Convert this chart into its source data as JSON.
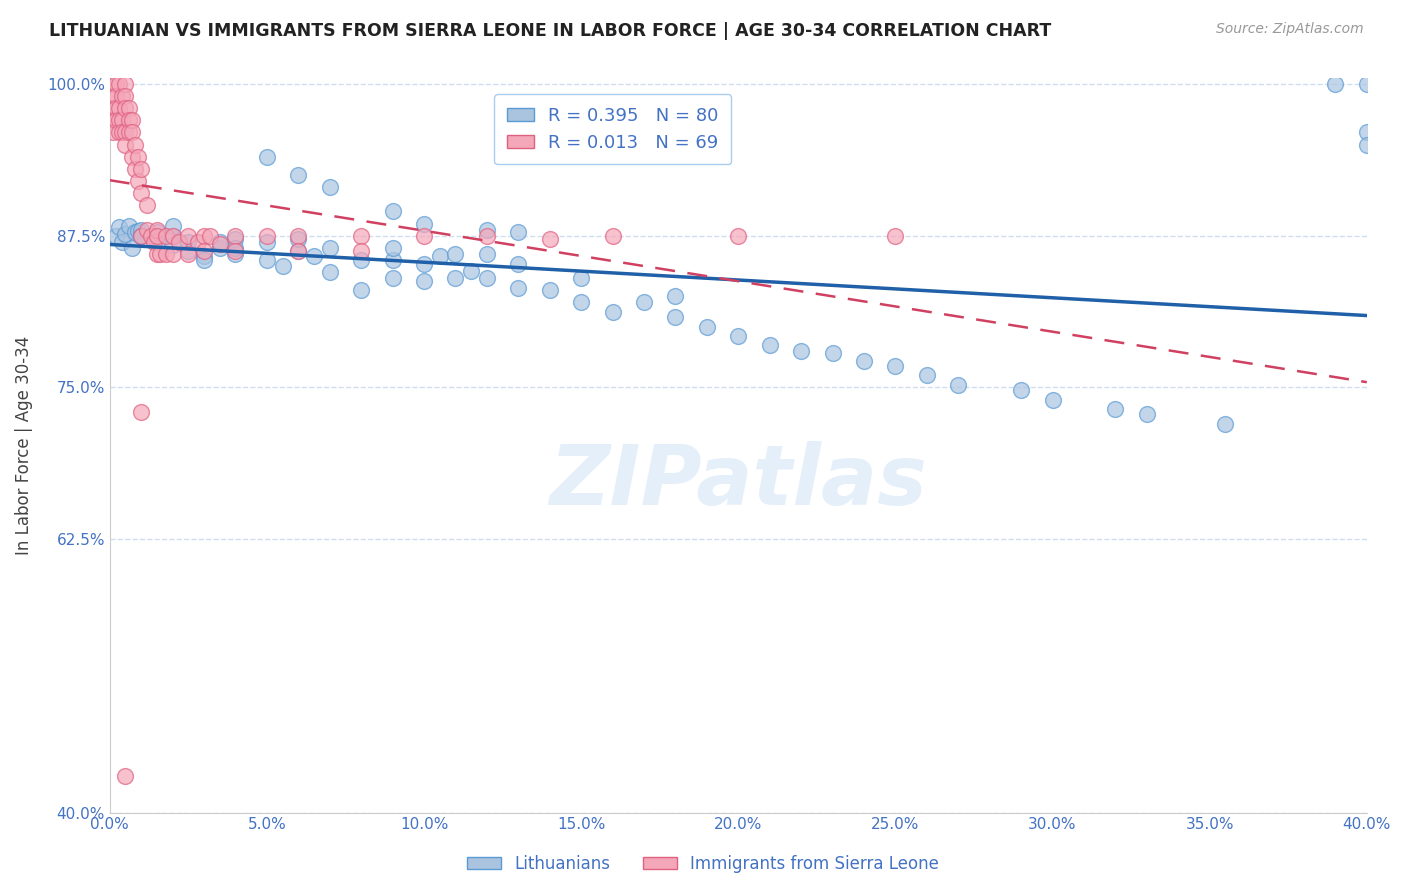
{
  "title": "LITHUANIAN VS IMMIGRANTS FROM SIERRA LEONE IN LABOR FORCE | AGE 30-34 CORRELATION CHART",
  "source": "Source: ZipAtlas.com",
  "ylabel": "In Labor Force | Age 30-34",
  "legend_labels": [
    "Lithuanians",
    "Immigrants from Sierra Leone"
  ],
  "blue_R": 0.395,
  "blue_N": 80,
  "pink_R": 0.013,
  "pink_N": 69,
  "x_min": 0.0,
  "x_max": 0.4,
  "y_min": 0.4,
  "y_max": 1.005,
  "blue_color": "#aac4e0",
  "blue_edge_color": "#5b9bd5",
  "pink_color": "#f4a7b9",
  "pink_edge_color": "#e06080",
  "blue_line_color": "#2060a8",
  "pink_line_color": "#d04060",
  "grid_color": "#d0dff0",
  "tick_color": "#4472c4",
  "title_color": "#222222",
  "watermark": "ZIPatlas",
  "blue_x": [
    0.002,
    0.003,
    0.004,
    0.005,
    0.006,
    0.007,
    0.008,
    0.009,
    0.01,
    0.01,
    0.01,
    0.015,
    0.015,
    0.02,
    0.02,
    0.02,
    0.025,
    0.025,
    0.03,
    0.03,
    0.035,
    0.035,
    0.04,
    0.04,
    0.04,
    0.05,
    0.05,
    0.055,
    0.06,
    0.06,
    0.065,
    0.07,
    0.07,
    0.08,
    0.08,
    0.09,
    0.09,
    0.09,
    0.1,
    0.1,
    0.105,
    0.11,
    0.11,
    0.115,
    0.12,
    0.12,
    0.13,
    0.13,
    0.14,
    0.15,
    0.15,
    0.16,
    0.17,
    0.18,
    0.18,
    0.19,
    0.2,
    0.21,
    0.22,
    0.23,
    0.24,
    0.25,
    0.26,
    0.27,
    0.29,
    0.3,
    0.32,
    0.33,
    0.355,
    0.39,
    0.4,
    0.4,
    0.4,
    0.05,
    0.06,
    0.07,
    0.09,
    0.1,
    0.12,
    0.13
  ],
  "blue_y": [
    0.875,
    0.882,
    0.87,
    0.876,
    0.883,
    0.865,
    0.878,
    0.879,
    0.875,
    0.88,
    0.875,
    0.878,
    0.87,
    0.875,
    0.867,
    0.883,
    0.862,
    0.87,
    0.858,
    0.855,
    0.865,
    0.87,
    0.86,
    0.872,
    0.865,
    0.855,
    0.87,
    0.85,
    0.862,
    0.872,
    0.858,
    0.845,
    0.865,
    0.855,
    0.83,
    0.84,
    0.855,
    0.865,
    0.838,
    0.852,
    0.858,
    0.84,
    0.86,
    0.846,
    0.84,
    0.86,
    0.832,
    0.852,
    0.83,
    0.82,
    0.84,
    0.812,
    0.82,
    0.808,
    0.825,
    0.8,
    0.792,
    0.785,
    0.78,
    0.778,
    0.772,
    0.768,
    0.76,
    0.752,
    0.748,
    0.74,
    0.732,
    0.728,
    0.72,
    1.0,
    1.0,
    0.96,
    0.95,
    0.94,
    0.925,
    0.915,
    0.895,
    0.885,
    0.88,
    0.878
  ],
  "pink_x": [
    0.001,
    0.001,
    0.001,
    0.001,
    0.001,
    0.002,
    0.002,
    0.002,
    0.002,
    0.003,
    0.003,
    0.003,
    0.003,
    0.004,
    0.004,
    0.004,
    0.005,
    0.005,
    0.005,
    0.005,
    0.005,
    0.006,
    0.006,
    0.006,
    0.007,
    0.007,
    0.007,
    0.008,
    0.008,
    0.009,
    0.009,
    0.01,
    0.01,
    0.01,
    0.012,
    0.012,
    0.013,
    0.014,
    0.015,
    0.015,
    0.015,
    0.016,
    0.018,
    0.018,
    0.02,
    0.02,
    0.022,
    0.025,
    0.025,
    0.028,
    0.03,
    0.03,
    0.032,
    0.035,
    0.04,
    0.04,
    0.05,
    0.06,
    0.06,
    0.08,
    0.08,
    0.1,
    0.12,
    0.14,
    0.16,
    0.2,
    0.25,
    0.01,
    0.005
  ],
  "pink_y": [
    1.0,
    0.99,
    0.98,
    0.97,
    0.96,
    1.0,
    0.99,
    0.98,
    0.97,
    1.0,
    0.98,
    0.97,
    0.96,
    0.99,
    0.97,
    0.96,
    1.0,
    0.99,
    0.98,
    0.96,
    0.95,
    0.98,
    0.97,
    0.96,
    0.97,
    0.96,
    0.94,
    0.95,
    0.93,
    0.94,
    0.92,
    0.93,
    0.91,
    0.875,
    0.9,
    0.88,
    0.875,
    0.87,
    0.88,
    0.86,
    0.875,
    0.86,
    0.875,
    0.86,
    0.875,
    0.86,
    0.87,
    0.875,
    0.86,
    0.87,
    0.875,
    0.862,
    0.875,
    0.868,
    0.875,
    0.862,
    0.875,
    0.875,
    0.862,
    0.875,
    0.862,
    0.875,
    0.875,
    0.872,
    0.875,
    0.875,
    0.875,
    0.73,
    0.43
  ]
}
